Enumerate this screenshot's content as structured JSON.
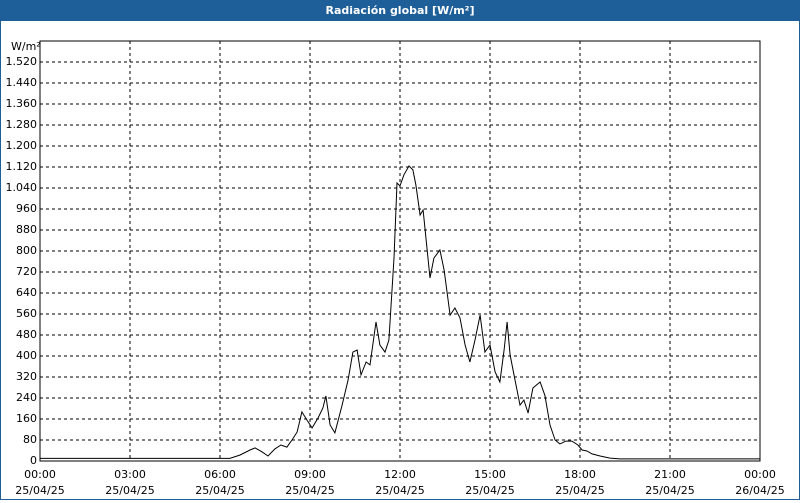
{
  "chart_data": {
    "type": "line",
    "title": "Radiación global [W/m²]",
    "y_label": "W/m²",
    "x": [
      0,
      6.0,
      6.33,
      6.67,
      7.0,
      7.17,
      7.4,
      7.6,
      7.83,
      8.03,
      8.23,
      8.4,
      8.57,
      8.73,
      8.9,
      9.07,
      9.27,
      9.43,
      9.53,
      9.67,
      9.83,
      10.07,
      10.27,
      10.43,
      10.57,
      10.7,
      10.87,
      11.0,
      11.2,
      11.33,
      11.5,
      11.63,
      11.8,
      11.9,
      12.0,
      12.13,
      12.3,
      12.43,
      12.53,
      12.67,
      12.77,
      13.0,
      13.13,
      13.33,
      13.47,
      13.67,
      13.83,
      14.0,
      14.17,
      14.33,
      14.5,
      14.67,
      14.83,
      15.0,
      15.17,
      15.33,
      15.47,
      15.57,
      15.67,
      15.8,
      16.0,
      16.13,
      16.27,
      16.43,
      16.67,
      16.83,
      17.0,
      17.17,
      17.33,
      17.53,
      17.73,
      17.93,
      18.07,
      18.23,
      18.4,
      18.67,
      19.0,
      19.33,
      24
    ],
    "series": [
      {
        "name": "Radiación global",
        "color": "#000000",
        "values": [
          10,
          10,
          10,
          23,
          42,
          50,
          35,
          19,
          46,
          61,
          53,
          80,
          110,
          187,
          156,
          126,
          164,
          202,
          248,
          137,
          107,
          213,
          309,
          415,
          423,
          328,
          377,
          366,
          530,
          442,
          415,
          461,
          773,
          1059,
          1048,
          1090,
          1124,
          1109,
          1051,
          937,
          956,
          697,
          773,
          804,
          728,
          556,
          583,
          545,
          442,
          377,
          461,
          556,
          415,
          442,
          339,
          301,
          423,
          530,
          404,
          328,
          213,
          232,
          183,
          278,
          301,
          250,
          137,
          80,
          65,
          76,
          76,
          61,
          42,
          38,
          27,
          19,
          11,
          8,
          8
        ]
      }
    ],
    "xlim": [
      0,
      24
    ],
    "xticks": [
      {
        "value": 0,
        "label": "00:00",
        "date": "25/04/25"
      },
      {
        "value": 3,
        "label": "03:00",
        "date": "25/04/25"
      },
      {
        "value": 6,
        "label": "06:00",
        "date": "25/04/25"
      },
      {
        "value": 9,
        "label": "09:00",
        "date": "25/04/25"
      },
      {
        "value": 12,
        "label": "12:00",
        "date": "25/04/25"
      },
      {
        "value": 15,
        "label": "15:00",
        "date": "25/04/25"
      },
      {
        "value": 18,
        "label": "18:00",
        "date": "25/04/25"
      },
      {
        "value": 21,
        "label": "21:00",
        "date": "25/04/25"
      },
      {
        "value": 24,
        "label": "00:00",
        "date": "26/04/25"
      }
    ],
    "ylim": [
      0,
      1600
    ],
    "yticks": [
      0,
      80,
      160,
      240,
      320,
      400,
      480,
      560,
      640,
      720,
      800,
      880,
      960,
      {
        "value": 1040,
        "label": "1.040"
      },
      {
        "value": 1120,
        "label": "1.120"
      },
      {
        "value": 1200,
        "label": "1.200"
      },
      {
        "value": 1280,
        "label": "1.280"
      },
      {
        "value": 1360,
        "label": "1.360"
      },
      {
        "value": 1440,
        "label": "1.440"
      },
      {
        "value": 1520,
        "label": "1.520"
      }
    ],
    "grid": true
  }
}
